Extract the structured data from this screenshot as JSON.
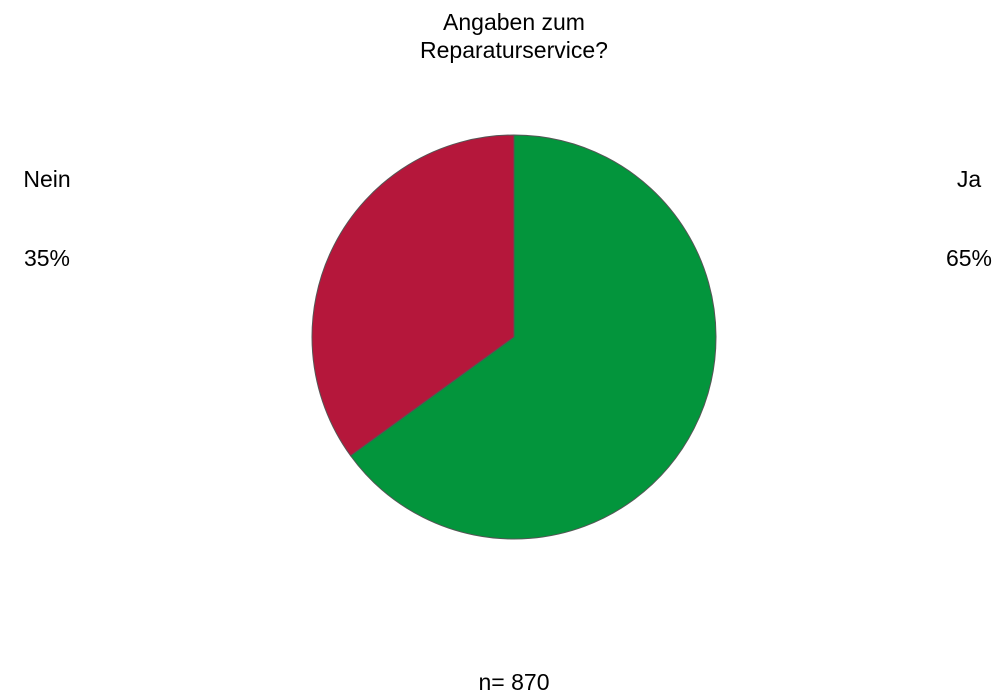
{
  "chart_data": {
    "type": "pie",
    "title": [
      "Angaben zum",
      "Reparaturservice?"
    ],
    "slices": [
      {
        "label": "Ja",
        "value": 65,
        "value_label": "65%",
        "color": "#03953c"
      },
      {
        "label": "Nein",
        "value": 35,
        "value_label": "35%",
        "color": "#b5173b"
      }
    ],
    "start_angle_deg": 0,
    "direction": "clockwise",
    "slice_border_color": "#555555",
    "footnote": "n= 870"
  }
}
